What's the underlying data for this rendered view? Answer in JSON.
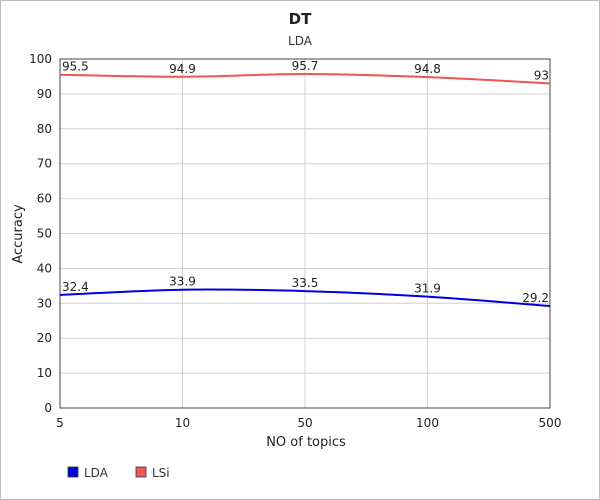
{
  "chart_data": {
    "type": "line",
    "title": "DT",
    "subtitle": "LDA",
    "xlabel": "NO of topics",
    "ylabel": "Accuracy",
    "categories": [
      "5",
      "10",
      "50",
      "100",
      "500"
    ],
    "ylim": [
      0,
      100
    ],
    "yticks": [
      "0",
      "10",
      "20",
      "30",
      "40",
      "50",
      "60",
      "70",
      "80",
      "90",
      "100"
    ],
    "grid": true,
    "legend_position": "bottom-left",
    "series": [
      {
        "name": "LDA",
        "color": "#0000dd",
        "values": [
          32.4,
          33.9,
          33.5,
          31.9,
          29.2
        ],
        "labels": [
          "32.4",
          "33.9",
          "33.5",
          "31.9",
          "29.2"
        ]
      },
      {
        "name": "LSi",
        "color": "#ee5555",
        "values": [
          95.5,
          94.9,
          95.7,
          94.8,
          93
        ],
        "labels": [
          "95.5",
          "94.9",
          "95.7",
          "94.8",
          "93"
        ]
      }
    ]
  }
}
